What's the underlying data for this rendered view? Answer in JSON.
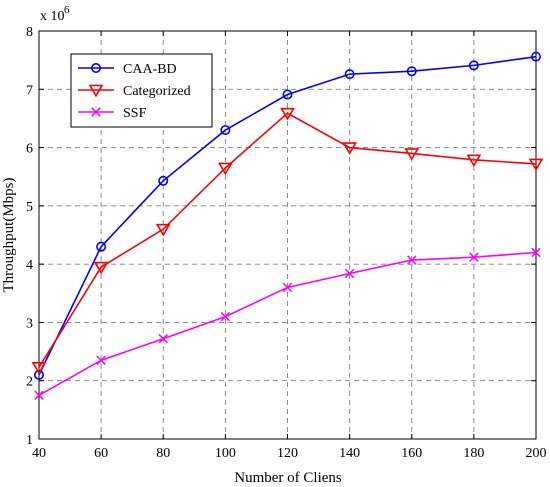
{
  "chart_data": {
    "type": "line",
    "x": [
      40,
      60,
      80,
      100,
      120,
      140,
      160,
      180,
      200
    ],
    "series": [
      {
        "name": "CAA-BD",
        "color": "#0000FF",
        "marker": "circle",
        "values": [
          2.1,
          4.3,
          5.43,
          6.3,
          6.91,
          7.26,
          7.31,
          7.41,
          7.56
        ]
      },
      {
        "name": "Categorized",
        "color": "#FF0000",
        "marker": "triangle-down",
        "values": [
          2.23,
          3.95,
          4.6,
          5.65,
          6.59,
          6.0,
          5.9,
          5.79,
          5.72
        ]
      },
      {
        "name": "SSF",
        "color": "#FF00FF",
        "marker": "x",
        "values": [
          1.75,
          2.35,
          2.72,
          3.1,
          3.6,
          3.84,
          4.07,
          4.12,
          4.2
        ]
      }
    ],
    "xlabel": "Number of Cliens",
    "ylabel": "Throughput(Mbps)",
    "xlim": [
      40,
      200
    ],
    "ylim": [
      1,
      8
    ],
    "xticks": [
      40,
      60,
      80,
      100,
      120,
      140,
      160,
      180,
      200
    ],
    "yticks": [
      1,
      2,
      3,
      4,
      5,
      6,
      7,
      8
    ],
    "y_multiplier_base": "x 10",
    "y_multiplier_exponent": "6",
    "grid": true,
    "legend_position": "top-left"
  }
}
